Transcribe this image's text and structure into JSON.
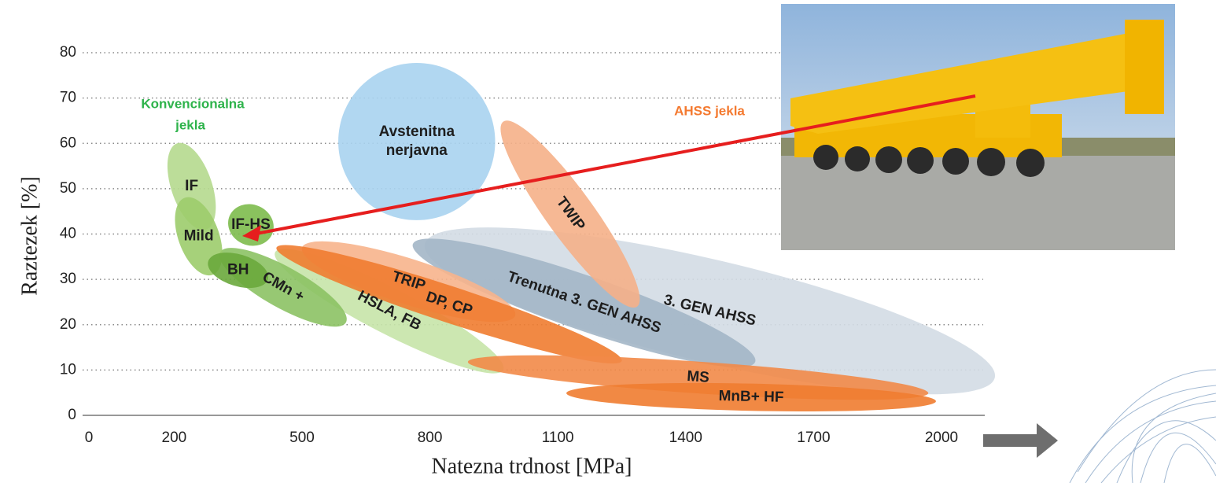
{
  "chart_data": {
    "type": "region",
    "xlabel": "Natezna trdnost [MPa]",
    "ylabel": "Raztezek [%]",
    "xlim": [
      0,
      2000
    ],
    "ylim": [
      0,
      80
    ],
    "xticks": [
      0,
      200,
      500,
      800,
      1100,
      1400,
      1700,
      2000
    ],
    "yticks": [
      0,
      10,
      20,
      30,
      40,
      50,
      60,
      70,
      80
    ],
    "grid": true,
    "annotations": [
      {
        "text": [
          "Konvencionalna",
          "jekla"
        ],
        "color": "#2eb34b"
      },
      {
        "text": [
          "AHSS jekla"
        ],
        "color": "#f47a30"
      }
    ],
    "regions": [
      {
        "label": "3. GEN AHSS",
        "color": "#d3dce4",
        "x": [
          788,
          2125
        ],
        "y": [
          37.8,
          8.3
        ],
        "thickness": 22.6
      },
      {
        "label": "Trenutna 3. GEN AHSS",
        "color": "#a3b6c6",
        "x": [
          760,
          1563
        ],
        "y": [
          37.8,
          11.8
        ],
        "thickness": 12
      },
      {
        "label": "HSLA, FB",
        "color": "#c6e4a8",
        "x": [
          437,
          972
        ],
        "y": [
          36,
          10
        ],
        "thickness": 10
      },
      {
        "label": "CMn +",
        "color": "#8cc264",
        "x": [
          308,
          603
        ],
        "y": [
          36,
          20.5
        ],
        "thickness": 9
      },
      {
        "label": "TRIP",
        "color": "#f7b48c",
        "x": [
          500,
          1000
        ],
        "y": [
          37,
          22
        ],
        "thickness": 10
      },
      {
        "label": "DP, CP",
        "color": "#f07c30",
        "x": [
          440,
          1250
        ],
        "y": [
          37,
          12
        ],
        "thickness": 8
      },
      {
        "label": "MS",
        "color": "#f28a48",
        "x": [
          889,
          1969
        ],
        "y": [
          11.8,
          4.9
        ],
        "thickness": 7
      },
      {
        "label": "MnB+ HF",
        "color": "#f07c30",
        "x": [
          1120,
          1987
        ],
        "y": [
          4.9,
          3.1
        ],
        "thickness": 6
      },
      {
        "label": "TWIP",
        "color": "#f5b088",
        "x": [
          972,
          1286
        ],
        "y": [
          64.8,
          24
        ],
        "thickness": 10.4
      },
      {
        "label": [
          "Avstenitna",
          "nerjavna"
        ],
        "color": "#a9d3ef",
        "x": [
          585,
          953
        ],
        "y": [
          60.4,
          60.4
        ],
        "thickness": 34.7
      },
      {
        "label": "IF",
        "color": "#b5d98e",
        "x": [
          207,
          275
        ],
        "y": [
          60,
          41
        ],
        "thickness": 9
      },
      {
        "label": "Mild",
        "color": "#9ccc6c",
        "x": [
          225,
          290
        ],
        "y": [
          48,
          31
        ],
        "thickness": 9
      },
      {
        "label": "IF-HS",
        "color": "#7dbb4c",
        "x": [
          330,
          430
        ],
        "y": [
          44,
          40
        ],
        "thickness": 9
      },
      {
        "label": "BH",
        "color": "#6aa83c",
        "x": [
          280,
          420
        ],
        "y": [
          34,
          30
        ],
        "thickness": 7
      }
    ]
  }
}
